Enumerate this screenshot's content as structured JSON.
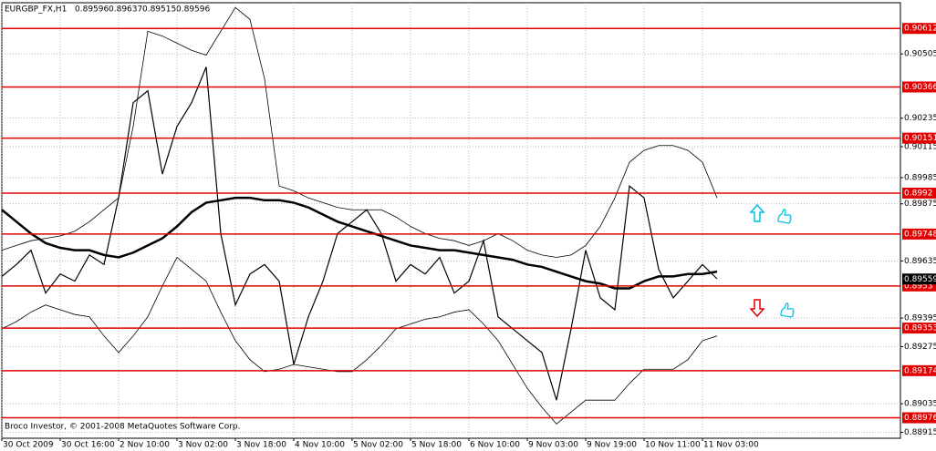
{
  "chart_data": {
    "type": "line",
    "title": "EURGBP_FX,H1",
    "header_values": [
      0.89596,
      0.89637,
      0.89515,
      0.89596
    ],
    "footer": "Broco Investor, © 2001-2008 MetaQuotes Software Corp.",
    "categories": [
      "30 Oct 2009",
      null,
      null,
      null,
      "30 Oct 16:00",
      null,
      null,
      null,
      "2 Nov 10:00",
      null,
      null,
      null,
      "3 Nov 02:00",
      null,
      null,
      null,
      "3 Nov 18:00",
      null,
      null,
      null,
      "4 Nov 10:00",
      null,
      null,
      null,
      "5 Nov 02:00",
      null,
      null,
      null,
      "5 Nov 18:00",
      null,
      null,
      null,
      "6 Nov 10:00",
      null,
      null,
      null,
      "9 Nov 03:00",
      null,
      null,
      null,
      "9 Nov 19:00",
      null,
      null,
      null,
      "10 Nov 11:00",
      null,
      null,
      null,
      "11 Nov 03:00",
      null
    ],
    "series": [
      {
        "color": "#000000",
        "width": 1.2,
        "values": [
          0.8957,
          0.8962,
          0.8968,
          0.895,
          0.8958,
          0.8955,
          0.8966,
          0.8962,
          0.899,
          0.903,
          0.9035,
          0.9,
          0.902,
          0.903,
          0.9045,
          0.8975,
          0.8945,
          0.8958,
          0.8962,
          0.8955,
          0.892,
          0.894,
          0.8955,
          0.8975,
          0.898,
          0.8985,
          0.8975,
          0.8955,
          0.8962,
          0.8958,
          0.8965,
          0.895,
          0.8955,
          0.8972,
          0.894,
          0.8935,
          0.893,
          0.8925,
          0.8905,
          0.8935,
          0.8968,
          0.8948,
          0.8943,
          0.8995,
          0.899,
          0.896,
          0.8948,
          0.8955,
          0.8962,
          0.8956
        ]
      },
      {
        "color": "#000000",
        "width": 2.5,
        "values": [
          0.8985,
          0.898,
          0.8975,
          0.8971,
          0.8969,
          0.8968,
          0.8968,
          0.8966,
          0.8965,
          0.8967,
          0.897,
          0.8973,
          0.8978,
          0.8984,
          0.8988,
          0.8989,
          0.899,
          0.899,
          0.8989,
          0.8989,
          0.8988,
          0.8986,
          0.8983,
          0.898,
          0.8978,
          0.8976,
          0.8974,
          0.8972,
          0.897,
          0.8969,
          0.8968,
          0.8968,
          0.8967,
          0.8966,
          0.8965,
          0.8964,
          0.8962,
          0.8961,
          0.8959,
          0.8957,
          0.8955,
          0.8954,
          0.8952,
          0.8952,
          0.8955,
          0.8957,
          0.8957,
          0.8958,
          0.8958,
          0.8959
        ]
      },
      {
        "color": "#000000",
        "width": 0.8,
        "values": [
          0.8968,
          0.897,
          0.8972,
          0.8973,
          0.8974,
          0.8976,
          0.898,
          0.8985,
          0.899,
          0.902,
          0.906,
          0.9058,
          0.9055,
          0.9052,
          0.905,
          0.906,
          0.907,
          0.9065,
          0.904,
          0.8995,
          0.8993,
          0.899,
          0.8988,
          0.8986,
          0.8985,
          0.8985,
          0.8985,
          0.8982,
          0.8978,
          0.8975,
          0.8973,
          0.8972,
          0.897,
          0.8972,
          0.8975,
          0.8972,
          0.8968,
          0.8966,
          0.8965,
          0.8966,
          0.897,
          0.8978,
          0.899,
          0.9005,
          0.901,
          0.9012,
          0.9012,
          0.901,
          0.9005,
          0.899
        ]
      },
      {
        "color": "#000000",
        "width": 0.8,
        "values": [
          0.8935,
          0.8938,
          0.8942,
          0.8945,
          0.8943,
          0.8941,
          0.894,
          0.8932,
          0.8925,
          0.8932,
          0.894,
          0.8953,
          0.8965,
          0.896,
          0.8955,
          0.8942,
          0.893,
          0.8922,
          0.8917,
          0.8918,
          0.892,
          0.8919,
          0.8918,
          0.8917,
          0.8917,
          0.8922,
          0.8928,
          0.8935,
          0.8937,
          0.8939,
          0.894,
          0.8942,
          0.8943,
          0.8937,
          0.893,
          0.892,
          0.891,
          0.8902,
          0.8895,
          0.89,
          0.8905,
          0.8905,
          0.8905,
          0.8912,
          0.8918,
          0.8918,
          0.8918,
          0.8922,
          0.893,
          0.8932
        ]
      }
    ],
    "levels": [
      0.90612,
      0.90366,
      0.90151,
      0.8992,
      0.89748,
      0.8953,
      0.89353,
      0.89174,
      0.88976
    ],
    "level_color": "#e00000",
    "price_label": 0.89559,
    "ylim": [
      0.8889,
      0.9072
    ],
    "yticks": [
      0.90505,
      0.90235,
      0.90115,
      0.89985,
      0.89875,
      0.89635,
      0.89395,
      0.89275,
      0.89035,
      0.88915
    ],
    "grid": true
  }
}
